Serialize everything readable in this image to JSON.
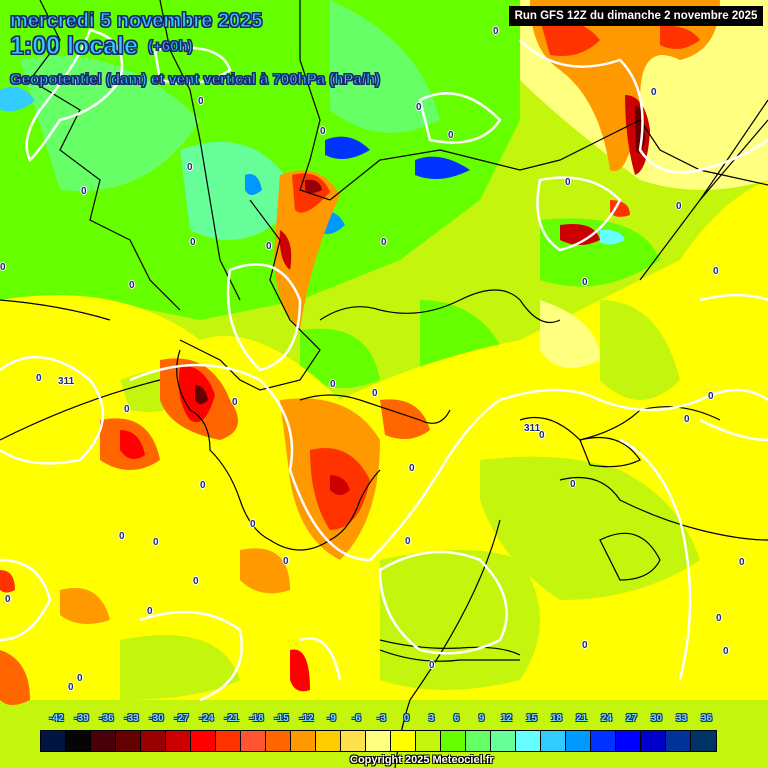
{
  "header": {
    "date": "mercredi 5 novembre 2025",
    "time": "1:00 locale",
    "offset": "(+60h)",
    "parameter": "Geopotentiel (dam) et vent vertical à 700hPa (hPa/h)",
    "run": "Run GFS 12Z du dimanche 2 novembre 2025"
  },
  "colorbar": {
    "ticks": [
      "-42",
      "-39",
      "-36",
      "-33",
      "-30",
      "-27",
      "-24",
      "-21",
      "-18",
      "-15",
      "-12",
      "-9",
      "-6",
      "-3",
      "0",
      "3",
      "6",
      "9",
      "12",
      "15",
      "18",
      "21",
      "24",
      "27",
      "30",
      "33",
      "36"
    ],
    "colors": [
      "#00153f",
      "#050505",
      "#4a0008",
      "#650000",
      "#960000",
      "#cc0000",
      "#ff0000",
      "#ff3300",
      "#ff5533",
      "#ff6600",
      "#ff9900",
      "#ffcc00",
      "#ffe14d",
      "#ffff80",
      "#ffff00",
      "#c4f50d",
      "#66ff00",
      "#66ff66",
      "#66ff99",
      "#66ffff",
      "#33ccff",
      "#0099ff",
      "#0033ff",
      "#0000ff",
      "#0000cc",
      "#003399",
      "#003366"
    ]
  },
  "contour_labels": {
    "geopotential": [
      "311",
      "311"
    ],
    "vertical_wind_zero": "0"
  },
  "footer": {
    "copyright": "Copyright 2025 Meteociel.fr"
  }
}
